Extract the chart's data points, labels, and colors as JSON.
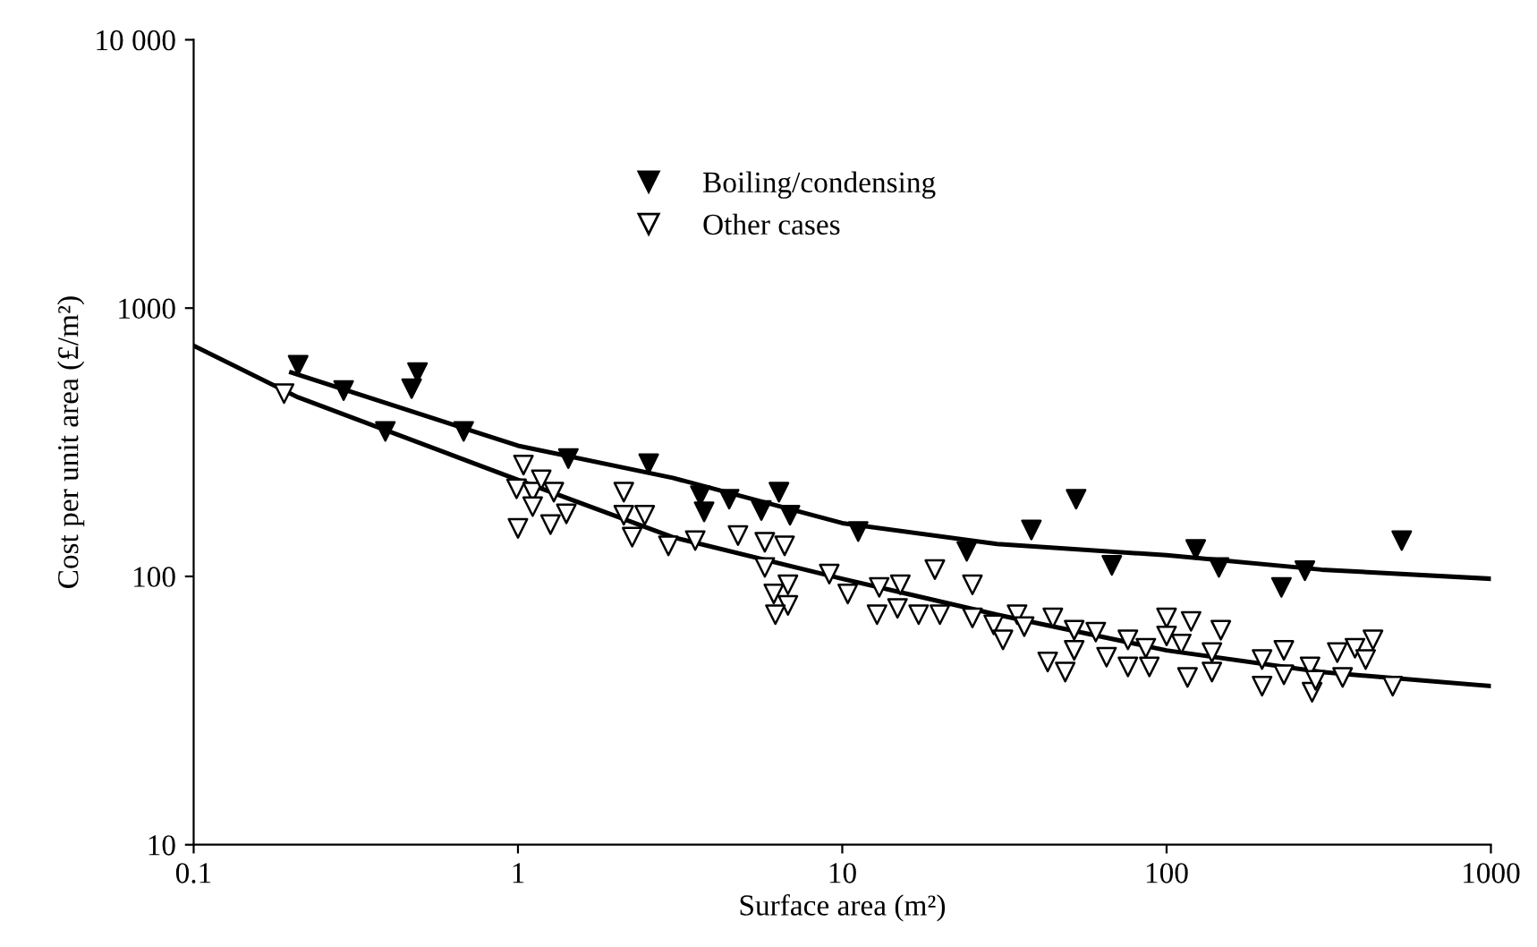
{
  "chart_data": {
    "type": "scatter",
    "xlabel": "Surface area (m²)",
    "ylabel": "Cost per unit area (£/m²)",
    "log": "xy",
    "xlim": [
      0.1,
      1000
    ],
    "ylim": [
      10,
      10000
    ],
    "xticks": [
      0.1,
      1,
      10,
      100,
      1000
    ],
    "yticks": [
      10,
      100,
      1000,
      {
        "value": 10000,
        "label": "10 000"
      }
    ],
    "grid": false,
    "legend": "top",
    "marker": "triangle",
    "series": [
      {
        "name": "Boiling/condensing",
        "color": "#000000",
        "x": [
          0.21,
          0.29,
          0.39,
          0.49,
          0.47,
          0.68,
          1.43,
          2.53,
          3.65,
          3.75,
          4.48,
          5.63,
          6.38,
          6.9,
          11.2,
          24.2,
          38.3,
          52.6,
          67.8,
          123,
          145,
          226,
          267,
          531
        ],
        "values": [
          612,
          493,
          347,
          575,
          501,
          347,
          275,
          263,
          200,
          174,
          194,
          176,
          206,
          169,
          147,
          124,
          149,
          194,
          110,
          126,
          108,
          91,
          105,
          136
        ]
      },
      {
        "name": "Other cases",
        "color": "#ffffff",
        "x": [
          0.19,
          1.04,
          0.99,
          1.11,
          1.18,
          1.29,
          1.11,
          1.41,
          1.0,
          1.26,
          2.12,
          2.12,
          2.46,
          2.25,
          2.91,
          3.52,
          4.77,
          5.77,
          6.64,
          5.77,
          6.15,
          6.8,
          6.8,
          6.22,
          9.12,
          10.4,
          13.0,
          12.8,
          15.1,
          14.8,
          17.2,
          19.3,
          20.0,
          25.2,
          25.2,
          29.3,
          31.3,
          34.6,
          36.4,
          43.0,
          44.6,
          48.7,
          51.9,
          51.9,
          60.5,
          65.3,
          76,
          76,
          88.5,
          86.3,
          100,
          100,
          119,
          111,
          116,
          138,
          138,
          147,
          197,
          197,
          230,
          230,
          277,
          281,
          288,
          336,
          349,
          381,
          411,
          433,
          498
        ],
        "values": [
          480,
          260,
          212,
          206,
          229,
          206,
          182,
          171,
          151,
          156,
          206,
          169,
          169,
          140,
          130,
          136,
          142,
          134,
          130,
          108,
          86,
          93,
          78,
          72,
          102,
          86,
          91,
          72,
          93,
          76,
          72,
          106,
          72,
          93,
          70,
          66,
          58,
          72,
          65,
          48,
          70,
          44,
          63,
          53,
          62,
          50,
          58,
          46,
          46,
          54,
          70,
          60,
          68,
          56,
          42,
          44,
          52,
          63,
          49,
          39,
          53,
          43,
          46,
          37,
          41,
          52,
          42,
          54,
          49,
          58,
          39
        ]
      },
      {
        "type": "line",
        "color": "#000000",
        "marker": "none",
        "line_style": "solid",
        "x": [
          0.2,
          1,
          3,
          10,
          30,
          100,
          300,
          1000
        ],
        "values": [
          575,
          307,
          233,
          158,
          132,
          120,
          106,
          98
        ]
      },
      {
        "type": "line",
        "color": "#000000",
        "marker": "none",
        "line_style": "solid",
        "x": [
          0.1,
          0.21,
          1,
          3,
          10,
          30,
          100,
          300,
          1000
        ],
        "values": [
          724,
          465,
          229,
          140,
          98,
          72,
          53,
          44,
          39
        ]
      }
    ]
  }
}
